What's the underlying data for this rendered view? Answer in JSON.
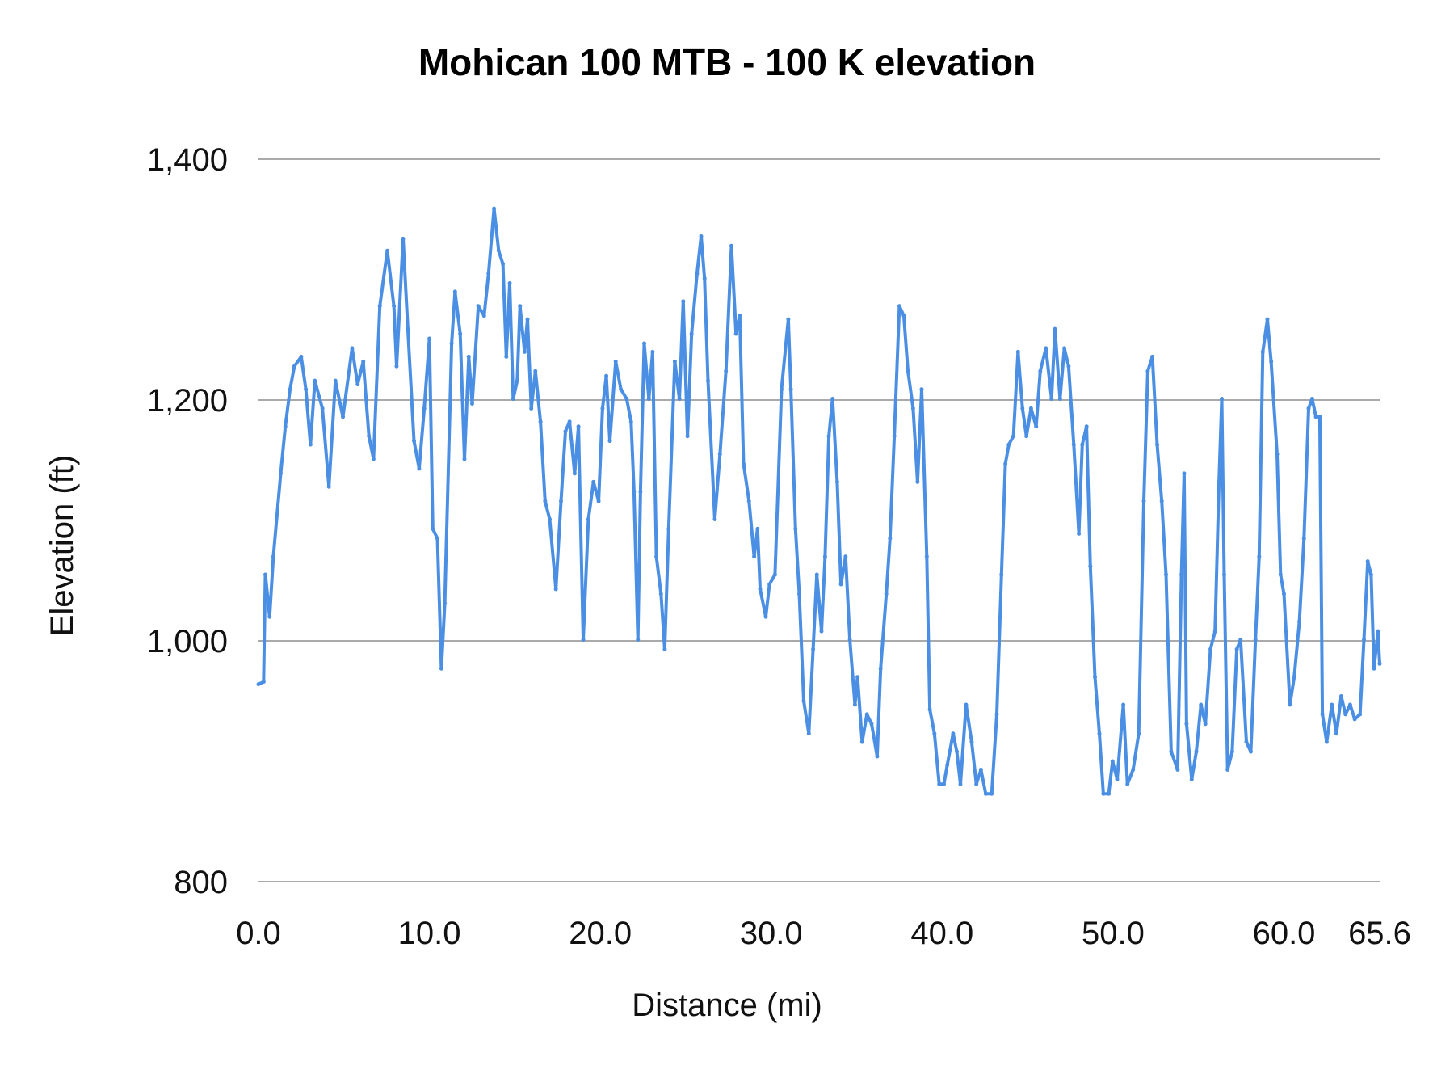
{
  "chart_data": {
    "type": "line",
    "title": "Mohican 100 MTB - 100 K elevation",
    "xlabel": "Distance (mi)",
    "ylabel": "Elevation (ft)",
    "xlim": [
      0,
      65.6
    ],
    "ylim": [
      800,
      1400
    ],
    "x_ticks": [
      "0.0",
      "10.0",
      "20.0",
      "30.0",
      "40.0",
      "50.0",
      "60.0",
      "65.6"
    ],
    "x_tick_values": [
      0,
      10,
      20,
      30,
      40,
      50,
      60,
      65.6
    ],
    "y_ticks": [
      "800",
      "1,000",
      "1,200",
      "1,400"
    ],
    "y_tick_values": [
      800,
      1000,
      1200,
      1400
    ],
    "grid": "horizontal",
    "legend": "none",
    "series_color": "#4a8fe3",
    "grid_color": "#aaaaaa",
    "series": [
      {
        "x": [
          0,
          0.3,
          0.4,
          0.65,
          0.87,
          1.3,
          1.57,
          1.85,
          2.1,
          2.5,
          2.77,
          3.04,
          3.3,
          3.74,
          4.12,
          4.5,
          4.94,
          5.48,
          5.8,
          6.13,
          6.46,
          6.73,
          7.1,
          7.54,
          7.92,
          8.08,
          8.46,
          8.74,
          9.1,
          9.4,
          9.7,
          10.0,
          10.2,
          10.47,
          10.7,
          10.9,
          11.3,
          11.5,
          11.8,
          12.05,
          12.3,
          12.5,
          12.86,
          13.2,
          13.46,
          13.78,
          14.05,
          14.3,
          14.5,
          14.7,
          14.9,
          15.14,
          15.3,
          15.57,
          15.74,
          15.96,
          16.2,
          16.5,
          16.77,
          17.04,
          17.4,
          17.7,
          17.96,
          18.2,
          18.5,
          18.72,
          19.0,
          19.3,
          19.6,
          19.9,
          20.13,
          20.35,
          20.56,
          20.9,
          21.2,
          21.54,
          21.8,
          21.97,
          22.2,
          22.35,
          22.57,
          22.84,
          23.06,
          23.28,
          23.55,
          23.77,
          24.0,
          24.36,
          24.63,
          24.85,
          25.1,
          25.34,
          25.66,
          25.9,
          26.1,
          26.3,
          26.7,
          27.0,
          27.35,
          27.67,
          27.94,
          28.16,
          28.38,
          28.7,
          29.0,
          29.2,
          29.35,
          29.68,
          29.9,
          30.22,
          30.6,
          31.0,
          31.15,
          31.42,
          31.64,
          31.9,
          32.2,
          32.45,
          32.67,
          32.94,
          33.15,
          33.37,
          33.59,
          33.86,
          34.08,
          34.35,
          34.6,
          34.9,
          35.05,
          35.32,
          35.6,
          35.87,
          36.2,
          36.4,
          36.73,
          36.95,
          37.2,
          37.5,
          37.76,
          38.0,
          38.3,
          38.56,
          38.8,
          39.1,
          39.28,
          39.55,
          39.83,
          40.1,
          40.3,
          40.64,
          40.86,
          41.07,
          41.4,
          41.73,
          42.0,
          42.27,
          42.55,
          42.9,
          43.2,
          43.47,
          43.7,
          43.9,
          44.17,
          44.44,
          44.7,
          44.93,
          45.2,
          45.5,
          45.74,
          46.07,
          46.4,
          46.6,
          46.9,
          47.15,
          47.4,
          47.7,
          48.0,
          48.2,
          48.45,
          48.67,
          48.94,
          49.2,
          49.43,
          49.75,
          49.97,
          50.24,
          50.6,
          50.84,
          51.17,
          51.5,
          51.8,
          52.03,
          52.3,
          52.58,
          52.85,
          53.1,
          53.4,
          53.78,
          54.0,
          54.16,
          54.3,
          54.6,
          54.87,
          55.14,
          55.4,
          55.7,
          55.97,
          56.2,
          56.36,
          56.5,
          56.7,
          56.97,
          57.24,
          57.46,
          57.8,
          58.06,
          58.33,
          58.55,
          58.76,
          59.03,
          59.25,
          59.6,
          59.8,
          60.0,
          60.35,
          60.6,
          60.9,
          61.17,
          61.44,
          61.65,
          61.87,
          62.1,
          62.25,
          62.5,
          62.8,
          63.07,
          63.35,
          63.6,
          63.87,
          64.14,
          64.45,
          64.68,
          64.9,
          65.1,
          65.27,
          65.5,
          65.6
        ],
        "y": [
          964,
          966,
          1055,
          1020,
          1070,
          1139,
          1178,
          1209,
          1228,
          1236,
          1209,
          1163,
          1216,
          1193,
          1128,
          1216,
          1186,
          1243,
          1213,
          1232,
          1170,
          1151,
          1278,
          1324,
          1278,
          1228,
          1334,
          1259,
          1166,
          1143,
          1193,
          1251,
          1093,
          1085,
          977,
          1031,
          1247,
          1290,
          1255,
          1151,
          1236,
          1197,
          1278,
          1270,
          1305,
          1359,
          1324,
          1313,
          1236,
          1297,
          1201,
          1216,
          1278,
          1240,
          1267,
          1193,
          1224,
          1182,
          1116,
          1101,
          1043,
          1116,
          1174,
          1182,
          1139,
          1178,
          1001,
          1101,
          1132,
          1116,
          1193,
          1220,
          1166,
          1232,
          1209,
          1201,
          1182,
          1124,
          1001,
          1124,
          1247,
          1201,
          1240,
          1070,
          1039,
          993,
          1093,
          1232,
          1201,
          1282,
          1170,
          1255,
          1305,
          1336,
          1301,
          1216,
          1101,
          1155,
          1224,
          1328,
          1255,
          1270,
          1147,
          1116,
          1070,
          1093,
          1043,
          1020,
          1047,
          1055,
          1209,
          1267,
          1209,
          1093,
          1039,
          950,
          923,
          993,
          1055,
          1008,
          1070,
          1170,
          1201,
          1132,
          1047,
          1070,
          1001,
          947,
          970,
          916,
          939,
          931,
          904,
          977,
          1039,
          1085,
          1170,
          1278,
          1270,
          1224,
          1193,
          1132,
          1209,
          1070,
          943,
          923,
          881,
          881,
          897,
          923,
          908,
          881,
          947,
          916,
          881,
          893,
          873,
          873,
          939,
          1055,
          1147,
          1163,
          1170,
          1240,
          1193,
          1170,
          1193,
          1178,
          1224,
          1243,
          1201,
          1259,
          1201,
          1243,
          1228,
          1163,
          1089,
          1163,
          1178,
          1062,
          970,
          923,
          873,
          873,
          900,
          885,
          947,
          881,
          893,
          923,
          1116,
          1224,
          1236,
          1163,
          1116,
          1055,
          908,
          893,
          1055,
          1139,
          931,
          885,
          908,
          947,
          931,
          993,
          1008,
          1132,
          1201,
          1055,
          893,
          908,
          993,
          1001,
          916,
          908,
          1001,
          1070,
          1240,
          1267,
          1232,
          1155,
          1055,
          1039,
          947,
          970,
          1016,
          1085,
          1193,
          1201,
          1186,
          1186,
          939,
          916,
          947,
          923,
          954,
          939,
          947,
          935,
          939,
          1001,
          1066,
          1055,
          977,
          1008,
          981
        ]
      }
    ]
  }
}
